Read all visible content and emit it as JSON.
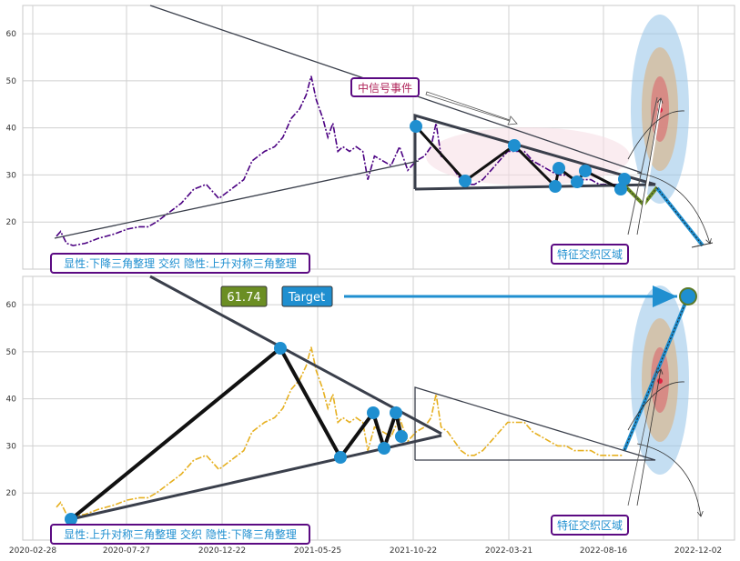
{
  "chart_data": [
    {
      "type": "line",
      "panel": "top",
      "series_color": "#4b0082",
      "ylim": [
        10,
        66
      ],
      "yticks": [
        20,
        30,
        40,
        50,
        60
      ],
      "price": [
        [
          0,
          17
        ],
        [
          5,
          18
        ],
        [
          12,
          15.5
        ],
        [
          20,
          15
        ],
        [
          35,
          15.5
        ],
        [
          50,
          16.5
        ],
        [
          70,
          17.5
        ],
        [
          85,
          18.5
        ],
        [
          100,
          19
        ],
        [
          110,
          19
        ],
        [
          120,
          20
        ],
        [
          135,
          22
        ],
        [
          150,
          24
        ],
        [
          165,
          27
        ],
        [
          180,
          28
        ],
        [
          195,
          25
        ],
        [
          210,
          27
        ],
        [
          225,
          29
        ],
        [
          235,
          33
        ],
        [
          250,
          35
        ],
        [
          262,
          36
        ],
        [
          272,
          38
        ],
        [
          282,
          42
        ],
        [
          292,
          44
        ],
        [
          300,
          47
        ],
        [
          306,
          51
        ],
        [
          312,
          46
        ],
        [
          320,
          42
        ],
        [
          326,
          38
        ],
        [
          332,
          41
        ],
        [
          338,
          35
        ],
        [
          344,
          36
        ],
        [
          352,
          35
        ],
        [
          360,
          36
        ],
        [
          368,
          35
        ],
        [
          374,
          29
        ],
        [
          382,
          34
        ],
        [
          392,
          33
        ],
        [
          402,
          32
        ],
        [
          412,
          36
        ],
        [
          422,
          31
        ],
        [
          432,
          33
        ],
        [
          442,
          34
        ],
        [
          450,
          36
        ],
        [
          456,
          41
        ],
        [
          462,
          34
        ],
        [
          470,
          33
        ],
        [
          478,
          31
        ],
        [
          486,
          29
        ],
        [
          494,
          28
        ],
        [
          502,
          28
        ],
        [
          512,
          29
        ],
        [
          522,
          31
        ],
        [
          532,
          33
        ],
        [
          542,
          35
        ],
        [
          552,
          35
        ],
        [
          562,
          35
        ],
        [
          572,
          33
        ],
        [
          582,
          32
        ],
        [
          592,
          31
        ],
        [
          602,
          30
        ],
        [
          612,
          30
        ],
        [
          622,
          29
        ],
        [
          632,
          29
        ],
        [
          642,
          29
        ],
        [
          652,
          28
        ],
        [
          662,
          28
        ],
        [
          672,
          28
        ],
        [
          680,
          28
        ]
      ],
      "signal_label": "中信号事件",
      "region_label": "特征交织区域",
      "pattern_label": "显性:下降三角整理 交织 隐性:上升对称三角整理"
    },
    {
      "type": "line",
      "panel": "bottom",
      "series_color": "#e6b020",
      "ylim": [
        10,
        66
      ],
      "yticks": [
        20,
        30,
        40,
        50,
        60
      ],
      "price": [
        [
          0,
          17
        ],
        [
          5,
          18
        ],
        [
          12,
          15.5
        ],
        [
          20,
          15
        ],
        [
          35,
          15.5
        ],
        [
          50,
          16.5
        ],
        [
          70,
          17.5
        ],
        [
          85,
          18.5
        ],
        [
          100,
          19
        ],
        [
          110,
          19
        ],
        [
          120,
          20
        ],
        [
          135,
          22
        ],
        [
          150,
          24
        ],
        [
          165,
          27
        ],
        [
          180,
          28
        ],
        [
          195,
          25
        ],
        [
          210,
          27
        ],
        [
          225,
          29
        ],
        [
          235,
          33
        ],
        [
          250,
          35
        ],
        [
          262,
          36
        ],
        [
          272,
          38
        ],
        [
          282,
          42
        ],
        [
          292,
          44
        ],
        [
          300,
          47
        ],
        [
          306,
          51
        ],
        [
          312,
          46
        ],
        [
          320,
          42
        ],
        [
          326,
          38
        ],
        [
          332,
          41
        ],
        [
          338,
          35
        ],
        [
          344,
          36
        ],
        [
          352,
          35
        ],
        [
          360,
          36
        ],
        [
          368,
          35
        ],
        [
          374,
          29
        ],
        [
          382,
          34
        ],
        [
          392,
          33
        ],
        [
          402,
          32
        ],
        [
          412,
          36
        ],
        [
          422,
          31
        ],
        [
          432,
          33
        ],
        [
          442,
          34
        ],
        [
          450,
          36
        ],
        [
          456,
          41
        ],
        [
          462,
          34
        ],
        [
          470,
          33
        ],
        [
          478,
          31
        ],
        [
          486,
          29
        ],
        [
          494,
          28
        ],
        [
          502,
          28
        ],
        [
          512,
          29
        ],
        [
          522,
          31
        ],
        [
          532,
          33
        ],
        [
          542,
          35
        ],
        [
          552,
          35
        ],
        [
          562,
          35
        ],
        [
          572,
          33
        ],
        [
          582,
          32
        ],
        [
          592,
          31
        ],
        [
          602,
          30
        ],
        [
          612,
          30
        ],
        [
          622,
          29
        ],
        [
          632,
          29
        ],
        [
          642,
          29
        ],
        [
          652,
          28
        ],
        [
          662,
          28
        ],
        [
          672,
          28
        ],
        [
          680,
          28
        ]
      ],
      "price_box_label": "61.74",
      "target_label": "Target",
      "region_label": "特征交织区域",
      "pattern_label": "显性:上升对称三角整理 交织 隐性:下降三角整理"
    }
  ],
  "xaxis": {
    "ticks": [
      "2020-02-28",
      "2020-07-27",
      "2020-12-22",
      "2021-05-25",
      "2021-10-22",
      "2022-03-21",
      "2022-08-16",
      "2022-12-02"
    ]
  },
  "colors": {
    "pivot": "#1f8fd0",
    "zigzag": "#111111",
    "triangle": "#3a3f4b",
    "label_border": "#5b0a82",
    "label_text": "#1f8fd0",
    "signal_text": "#b0245a",
    "price_box": "#6b8e23",
    "target_box": "#1f8fd0",
    "ellipse_outer": "#9cc8ea",
    "ellipse_mid": "#d8b890",
    "ellipse_inner": "#d87878",
    "target_dot": "#e02040"
  }
}
